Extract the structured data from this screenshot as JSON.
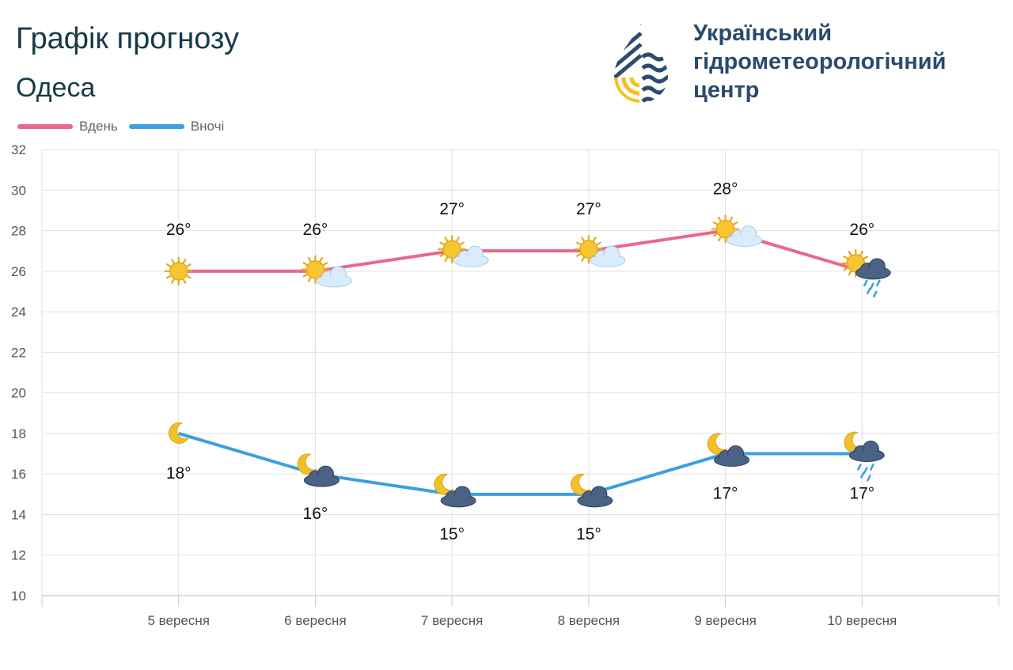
{
  "header": {
    "title": "Графік прогнозу",
    "city": "Одеса"
  },
  "organization": {
    "line1": "Український",
    "line2": "гідрометеорологічний",
    "line3": "центр",
    "logo_icon": "drop-logo-icon"
  },
  "legend": {
    "day_label": "Вдень",
    "night_label": "Вночі"
  },
  "colors": {
    "day": "#e8698a",
    "night": "#3b9fe0",
    "title": "#17394a",
    "org": "#2a4a6e",
    "grid": "#e2e2e2"
  },
  "chart_data": {
    "type": "line",
    "categories": [
      "5 вересня",
      "6 вересня",
      "7 вересня",
      "8 вересня",
      "9 вересня",
      "10 вересня"
    ],
    "series": [
      {
        "name": "Вдень",
        "values": [
          26,
          26,
          27,
          27,
          28,
          26
        ],
        "labels": [
          "26°",
          "26°",
          "27°",
          "27°",
          "28°",
          "26°"
        ],
        "icons": [
          "sun-icon",
          "sun-cloud-icon",
          "sun-cloud-icon",
          "sun-cloud-icon",
          "sun-cloud-icon",
          "sun-rain-cloud-icon"
        ]
      },
      {
        "name": "Вночі",
        "values": [
          18,
          16,
          15,
          15,
          17,
          17
        ],
        "labels": [
          "18°",
          "16°",
          "15°",
          "15°",
          "17°",
          "17°"
        ],
        "icons": [
          "moon-icon",
          "moon-cloud-icon",
          "moon-cloud-icon",
          "moon-cloud-icon",
          "moon-cloud-icon",
          "moon-rain-cloud-icon"
        ]
      }
    ],
    "ylim": [
      10,
      32
    ],
    "yticks": [
      "10",
      "12",
      "14",
      "16",
      "18",
      "20",
      "22",
      "24",
      "26",
      "28",
      "30",
      "32"
    ],
    "grid": true,
    "legend_position": "top-left",
    "xlabel": "",
    "ylabel": ""
  }
}
